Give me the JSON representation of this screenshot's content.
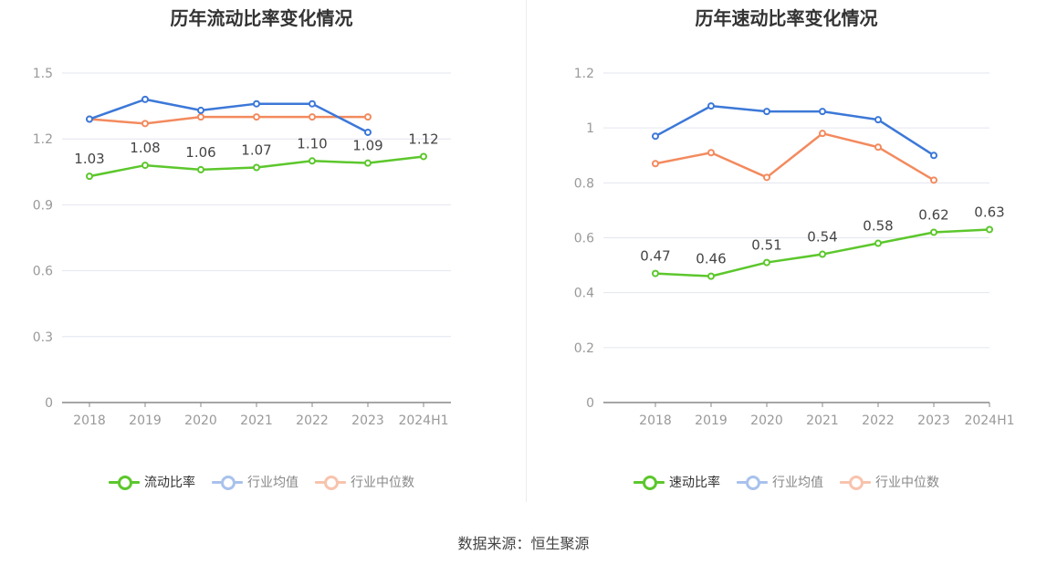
{
  "source": "数据来源：恒生聚源",
  "colors": {
    "primary": "#5cc72c",
    "avg": "#3c78d8",
    "median": "#f38a5e"
  },
  "chart_data": [
    {
      "type": "line",
      "title": "历年流动比率变化情况",
      "categories": [
        "2018",
        "2019",
        "2020",
        "2021",
        "2022",
        "2023",
        "2024H1"
      ],
      "ylim": [
        0,
        1.5
      ],
      "yticks": [
        "0",
        "0.3",
        "0.6",
        "0.9",
        "1.2",
        "1.5"
      ],
      "ytick_values": [
        0,
        0.3,
        0.6,
        0.9,
        1.2,
        1.5
      ],
      "grid": true,
      "legend_position": "bottom",
      "series": [
        {
          "name": "流动比率",
          "color": "#5cc72c",
          "values": [
            1.03,
            1.08,
            1.06,
            1.07,
            1.1,
            1.09,
            1.12
          ],
          "labels": [
            "1.03",
            "1.08",
            "1.06",
            "1.07",
            "1.10",
            "1.09",
            "1.12"
          ]
        },
        {
          "name": "行业均值",
          "color": "#3c78d8",
          "values": [
            1.29,
            1.38,
            1.33,
            1.36,
            1.36,
            1.23,
            null
          ]
        },
        {
          "name": "行业中位数",
          "color": "#f38a5e",
          "values": [
            1.29,
            1.27,
            1.3,
            1.3,
            1.3,
            1.3,
            null
          ]
        }
      ]
    },
    {
      "type": "line",
      "title": "历年速动比率变化情况",
      "categories": [
        "2018",
        "2019",
        "2020",
        "2021",
        "2022",
        "2023",
        "2024H1"
      ],
      "ylim": [
        0,
        1.2
      ],
      "yticks": [
        "0",
        "0.2",
        "0.4",
        "0.6",
        "0.8",
        "1",
        "1.2"
      ],
      "ytick_values": [
        0,
        0.2,
        0.4,
        0.6,
        0.8,
        1.0,
        1.2
      ],
      "grid": true,
      "legend_position": "bottom",
      "series": [
        {
          "name": "速动比率",
          "color": "#5cc72c",
          "values": [
            0.47,
            0.46,
            0.51,
            0.54,
            0.58,
            0.62,
            0.63
          ],
          "labels": [
            "0.47",
            "0.46",
            "0.51",
            "0.54",
            "0.58",
            "0.62",
            "0.63"
          ]
        },
        {
          "name": "行业均值",
          "color": "#3c78d8",
          "values": [
            0.97,
            1.08,
            1.06,
            1.06,
            1.03,
            0.9,
            null
          ]
        },
        {
          "name": "行业中位数",
          "color": "#f38a5e",
          "values": [
            0.87,
            0.91,
            0.82,
            0.98,
            0.93,
            0.81,
            null
          ]
        }
      ]
    }
  ]
}
